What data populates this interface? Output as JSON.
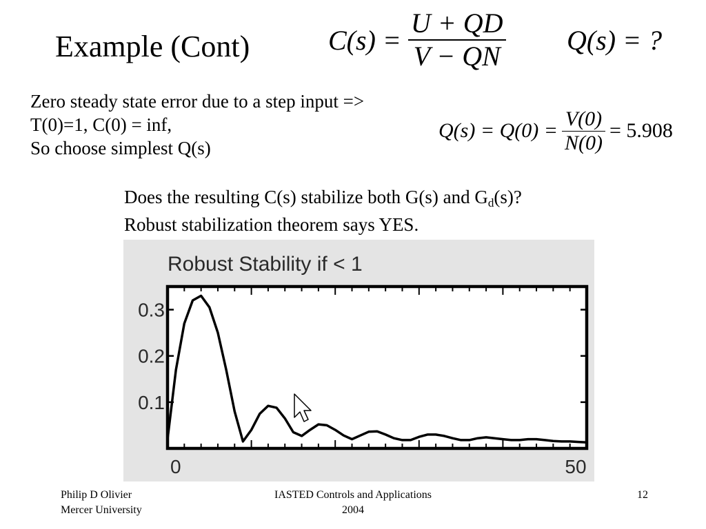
{
  "slide": {
    "title": "Example (Cont)",
    "equation_controller": {
      "lhs": "C(s) =",
      "numerator": "U + QD",
      "denominator": "V − QN"
    },
    "equation_q_question": "Q(s) = ?",
    "body_lines": [
      "Zero steady state error due to a step input =>",
      "T(0)=1, C(0) = inf,",
      "So choose simplest Q(s)"
    ],
    "equation_q_value": {
      "lhs": "Q(s) = Q(0) =",
      "numerator": "V(0)",
      "denominator": "N(0)",
      "rhs": "= 5.908"
    },
    "question": {
      "line1_before_sub": "Does the resulting C(s) stabilize both G(s) and G",
      "line1_sub": "d",
      "line1_after_sub": "(s)?",
      "line2": "Robust stabilization theorem says YES."
    }
  },
  "chart_data": {
    "type": "line",
    "title": "Robust Stability if < 1",
    "xlabel": "",
    "ylabel": "",
    "xlim": [
      0,
      50
    ],
    "ylim": [
      0,
      0.35
    ],
    "x_ticks": [
      0,
      50
    ],
    "x_tick_labels": [
      "0",
      "50"
    ],
    "y_ticks": [
      0.1,
      0.2,
      0.3
    ],
    "y_tick_labels": [
      "0.1",
      "0.2",
      "0.3"
    ],
    "grid": false,
    "series": [
      {
        "x": [
          0,
          1,
          2,
          3,
          4,
          5,
          6,
          7,
          8,
          9,
          10,
          11,
          12,
          13,
          14,
          15,
          16,
          17,
          18,
          19,
          20,
          21,
          22,
          23,
          24,
          25,
          26,
          27,
          28,
          29,
          30,
          31,
          32,
          33,
          34,
          35,
          36,
          37,
          38,
          39,
          40,
          41,
          42,
          43,
          44,
          45,
          46,
          47,
          48,
          49,
          50
        ],
        "values": [
          0.02,
          0.17,
          0.27,
          0.32,
          0.33,
          0.305,
          0.25,
          0.17,
          0.08,
          0.015,
          0.04,
          0.075,
          0.092,
          0.088,
          0.065,
          0.035,
          0.027,
          0.04,
          0.052,
          0.05,
          0.04,
          0.028,
          0.02,
          0.028,
          0.036,
          0.037,
          0.03,
          0.022,
          0.018,
          0.018,
          0.025,
          0.03,
          0.03,
          0.027,
          0.022,
          0.018,
          0.018,
          0.022,
          0.024,
          0.022,
          0.02,
          0.018,
          0.018,
          0.02,
          0.02,
          0.018,
          0.016,
          0.015,
          0.015,
          0.014,
          0.013
        ]
      }
    ]
  },
  "footer": {
    "author_line1": "Philip D Olivier",
    "author_line2": "Mercer University",
    "venue_line1": "IASTED Controls and Applications",
    "venue_line2": "2004",
    "page_number": "12"
  },
  "icons": {
    "cursor": "mouse-pointer-icon"
  }
}
